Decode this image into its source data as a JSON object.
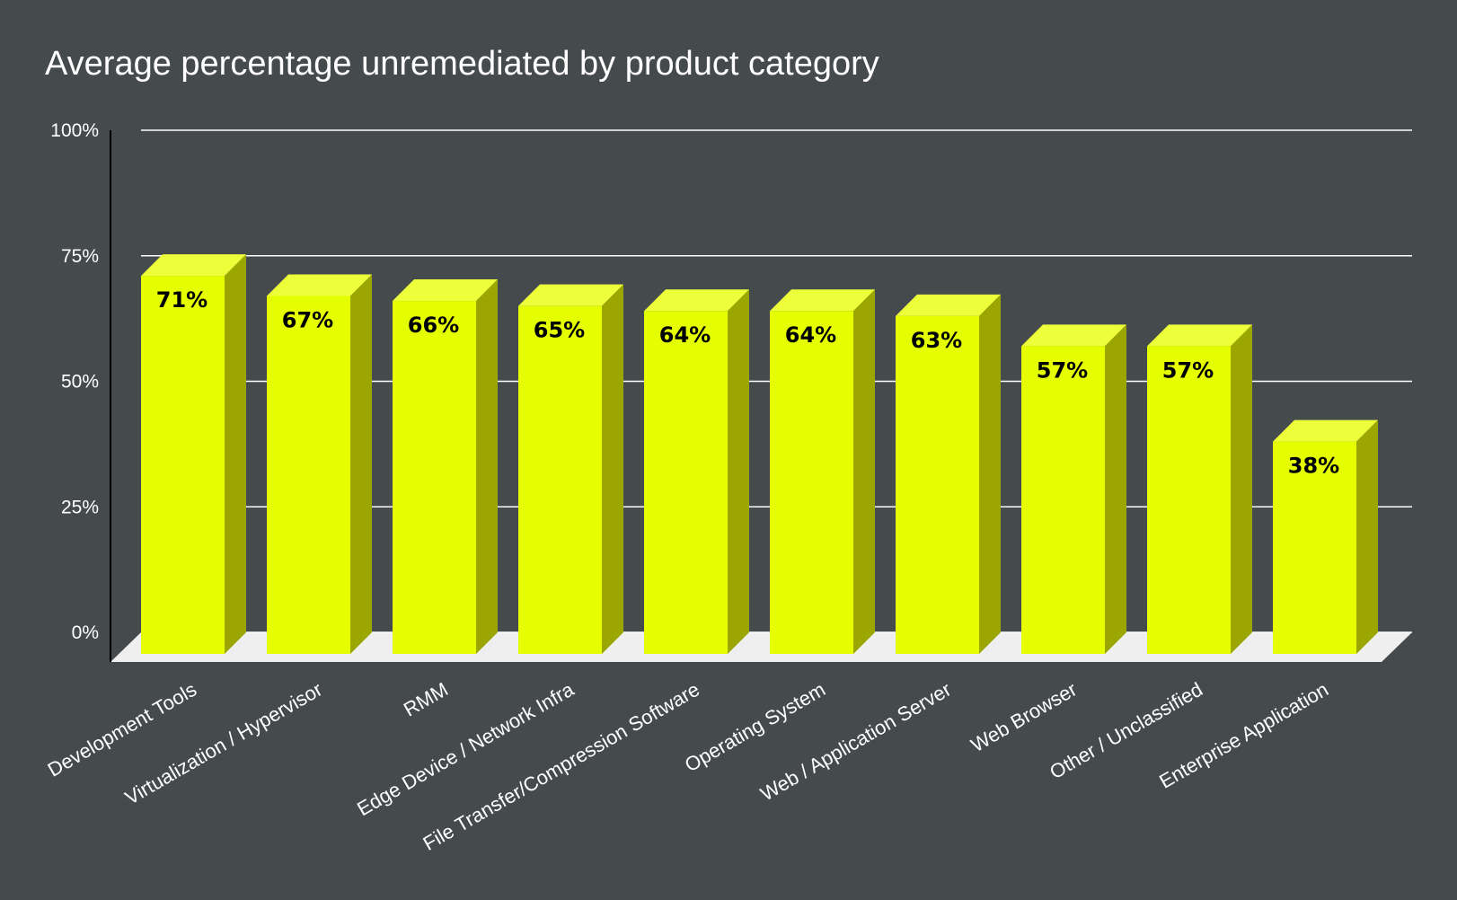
{
  "chart_data": {
    "type": "bar",
    "title": "Average percentage unremediated by product category",
    "categories": [
      "Development Tools",
      "Virtualization / Hypervisor",
      "RMM",
      "Edge Device / Network Infra",
      "File Transfer/Compression Software",
      "Operating System",
      "Web / Application Server",
      "Web Browser",
      "Other / Unclassified",
      "Enterprise Application"
    ],
    "values": [
      71,
      67,
      66,
      65,
      64,
      64,
      63,
      57,
      57,
      38
    ],
    "data_labels": [
      "71%",
      "67%",
      "66%",
      "65%",
      "64%",
      "64%",
      "63%",
      "57%",
      "57%",
      "38%"
    ],
    "yticks": [
      0,
      25,
      50,
      75,
      100
    ],
    "ytick_labels": [
      "0%",
      "25%",
      "50%",
      "75%",
      "100%"
    ],
    "ylim": [
      0,
      100
    ],
    "xlabel": "",
    "ylabel": "",
    "grid": true,
    "legend": "none"
  },
  "colors": {
    "background": "#454a4d",
    "bar_front": "#e5ff00",
    "bar_top": "#ecff3a",
    "bar_side": "#9ba600",
    "floor": "#efefef",
    "gridline": "#ffffff",
    "text": "#ffffff",
    "data_label": "#000000"
  }
}
